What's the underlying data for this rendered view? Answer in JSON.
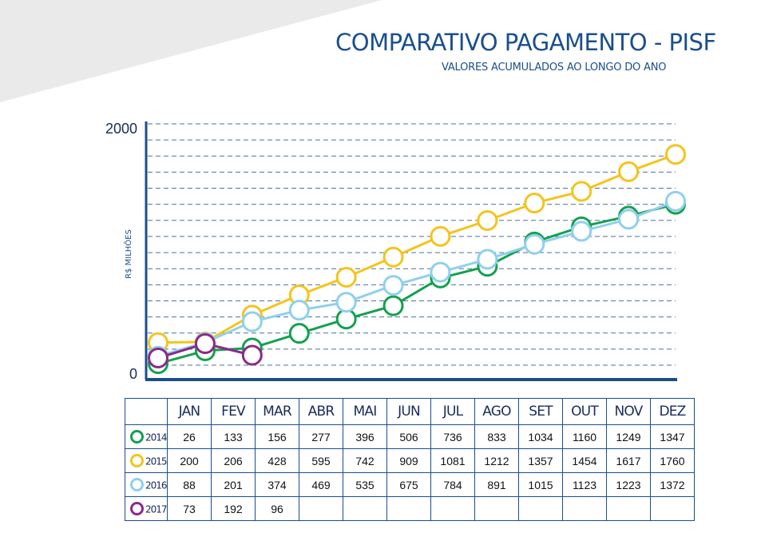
{
  "header": {
    "title": "COMPARATIVO PAGAMENTO - PISF",
    "subtitle": "VALORES ACUMULADOS AO LONGO DO ANO"
  },
  "colors": {
    "2014": "#14a050",
    "2015": "#f4c41c",
    "2016": "#8fd0ec",
    "2017": "#8a2a8a",
    "axis": "#1a4f8c",
    "grid": "#1a4f8c"
  },
  "chart_data": {
    "type": "line",
    "title": "COMPARATIVO PAGAMENTO - PISF",
    "subtitle": "VALORES ACUMULADOS AO LONGO DO ANO",
    "xlabel": "",
    "ylabel": "R$ MILHÕES",
    "ylim": [
      0,
      2000
    ],
    "yticks": [
      "0",
      "2000"
    ],
    "grid": true,
    "categories": [
      "JAN",
      "FEV",
      "MAR",
      "ABR",
      "MAI",
      "JUN",
      "JUL",
      "AGO",
      "SET",
      "OUT",
      "NOV",
      "DEZ"
    ],
    "series": [
      {
        "name": "2014",
        "values": [
          26,
          133,
          156,
          277,
          396,
          506,
          736,
          833,
          1034,
          1160,
          1249,
          1347
        ]
      },
      {
        "name": "2015",
        "values": [
          200,
          206,
          428,
          595,
          742,
          909,
          1081,
          1212,
          1357,
          1454,
          1617,
          1760
        ]
      },
      {
        "name": "2016",
        "values": [
          88,
          201,
          374,
          469,
          535,
          675,
          784,
          891,
          1015,
          1123,
          1223,
          1372
        ]
      },
      {
        "name": "2017",
        "values": [
          73,
          192,
          96,
          null,
          null,
          null,
          null,
          null,
          null,
          null,
          null,
          null
        ]
      }
    ]
  },
  "table": {
    "header": [
      "JAN",
      "FEV",
      "MAR",
      "ABR",
      "MAI",
      "JUN",
      "JUL",
      "AGO",
      "SET",
      "OUT",
      "NOV",
      "DEZ"
    ],
    "rows": [
      {
        "year": "2014",
        "values": [
          "26",
          "133",
          "156",
          "277",
          "396",
          "506",
          "736",
          "833",
          "1034",
          "1160",
          "1249",
          "1347"
        ]
      },
      {
        "year": "2015",
        "values": [
          "200",
          "206",
          "428",
          "595",
          "742",
          "909",
          "1081",
          "1212",
          "1357",
          "1454",
          "1617",
          "1760"
        ]
      },
      {
        "year": "2016",
        "values": [
          "88",
          "201",
          "374",
          "469",
          "535",
          "675",
          "784",
          "891",
          "1015",
          "1123",
          "1223",
          "1372"
        ]
      },
      {
        "year": "2017",
        "values": [
          "73",
          "192",
          "96",
          "",
          "",
          "",
          "",
          "",
          "",
          "",
          "",
          ""
        ]
      }
    ]
  }
}
